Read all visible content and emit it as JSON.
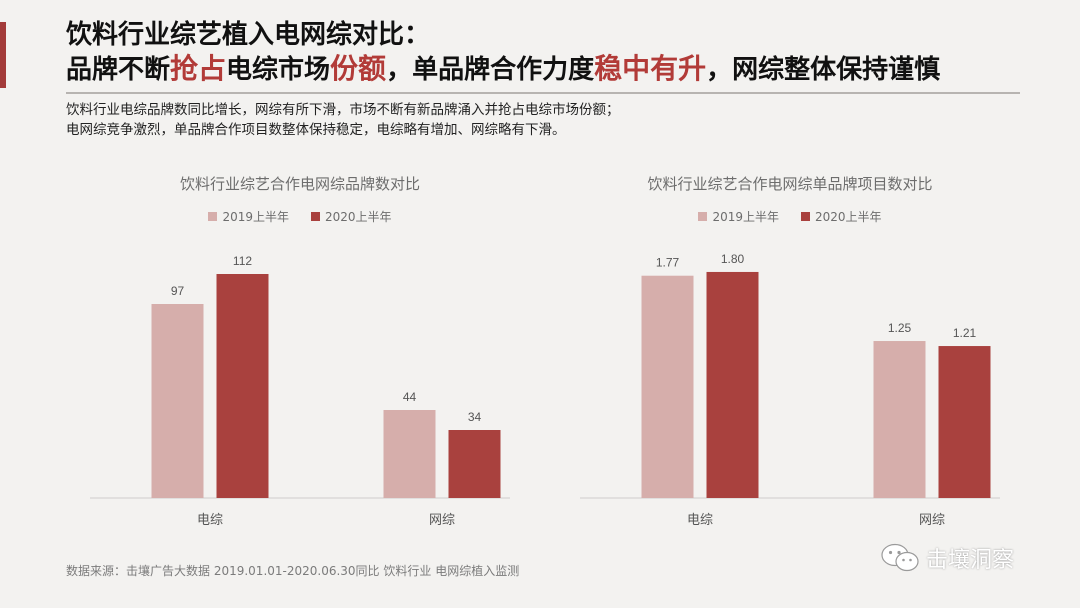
{
  "title": {
    "line1": "饮料行业综艺植入电网综对比：",
    "line2_parts": [
      {
        "text": "品牌不断",
        "hl": false
      },
      {
        "text": "抢占",
        "hl": true
      },
      {
        "text": "电综市场",
        "hl": false
      },
      {
        "text": "份额",
        "hl": true
      },
      {
        "text": "，单品牌合作力度",
        "hl": false
      },
      {
        "text": "稳中有升",
        "hl": true
      },
      {
        "text": "，网综整体保持谨慎",
        "hl": false
      }
    ]
  },
  "summary": {
    "line1": "饮料行业电综品牌数同比增长，网综有所下滑，市场不断有新品牌涌入并抢占电综市场份额；",
    "line2": "电网综竞争激烈，单品牌合作项目数整体保持稳定，电综略有增加、网综略有下滑。"
  },
  "colors": {
    "series_2019": "#d6aeab",
    "series_2020": "#a9413e",
    "accent": "#b23b38"
  },
  "chart_data": [
    {
      "type": "bar",
      "title": "饮料行业综艺合作电网综品牌数对比",
      "categories": [
        "电综",
        "网综"
      ],
      "series": [
        {
          "name": "2019上半年",
          "values": [
            97,
            44
          ],
          "labels": [
            "97",
            "44"
          ]
        },
        {
          "name": "2020上半年",
          "values": [
            112,
            34
          ],
          "labels": [
            "112",
            "34"
          ]
        }
      ],
      "ylim": [
        0,
        135
      ],
      "grid": false,
      "legend": "top-center"
    },
    {
      "type": "bar",
      "title": "饮料行业综艺合作电网综单品牌项目数对比",
      "categories": [
        "电综",
        "网综"
      ],
      "series": [
        {
          "name": "2019上半年",
          "values": [
            1.77,
            1.25
          ],
          "labels": [
            "1.77",
            "1.25"
          ]
        },
        {
          "name": "2020上半年",
          "values": [
            1.8,
            1.21
          ],
          "labels": [
            "1.80",
            "1.21"
          ]
        }
      ],
      "ylim": [
        0,
        2.15
      ],
      "grid": false,
      "legend": "top-center"
    }
  ],
  "source": "数据来源：击壤广告大数据 2019.01.01-2020.06.30同比 饮料行业 电网综植入监测",
  "watermark": {
    "text": "击壤洞察",
    "icon": "wechat-icon"
  }
}
